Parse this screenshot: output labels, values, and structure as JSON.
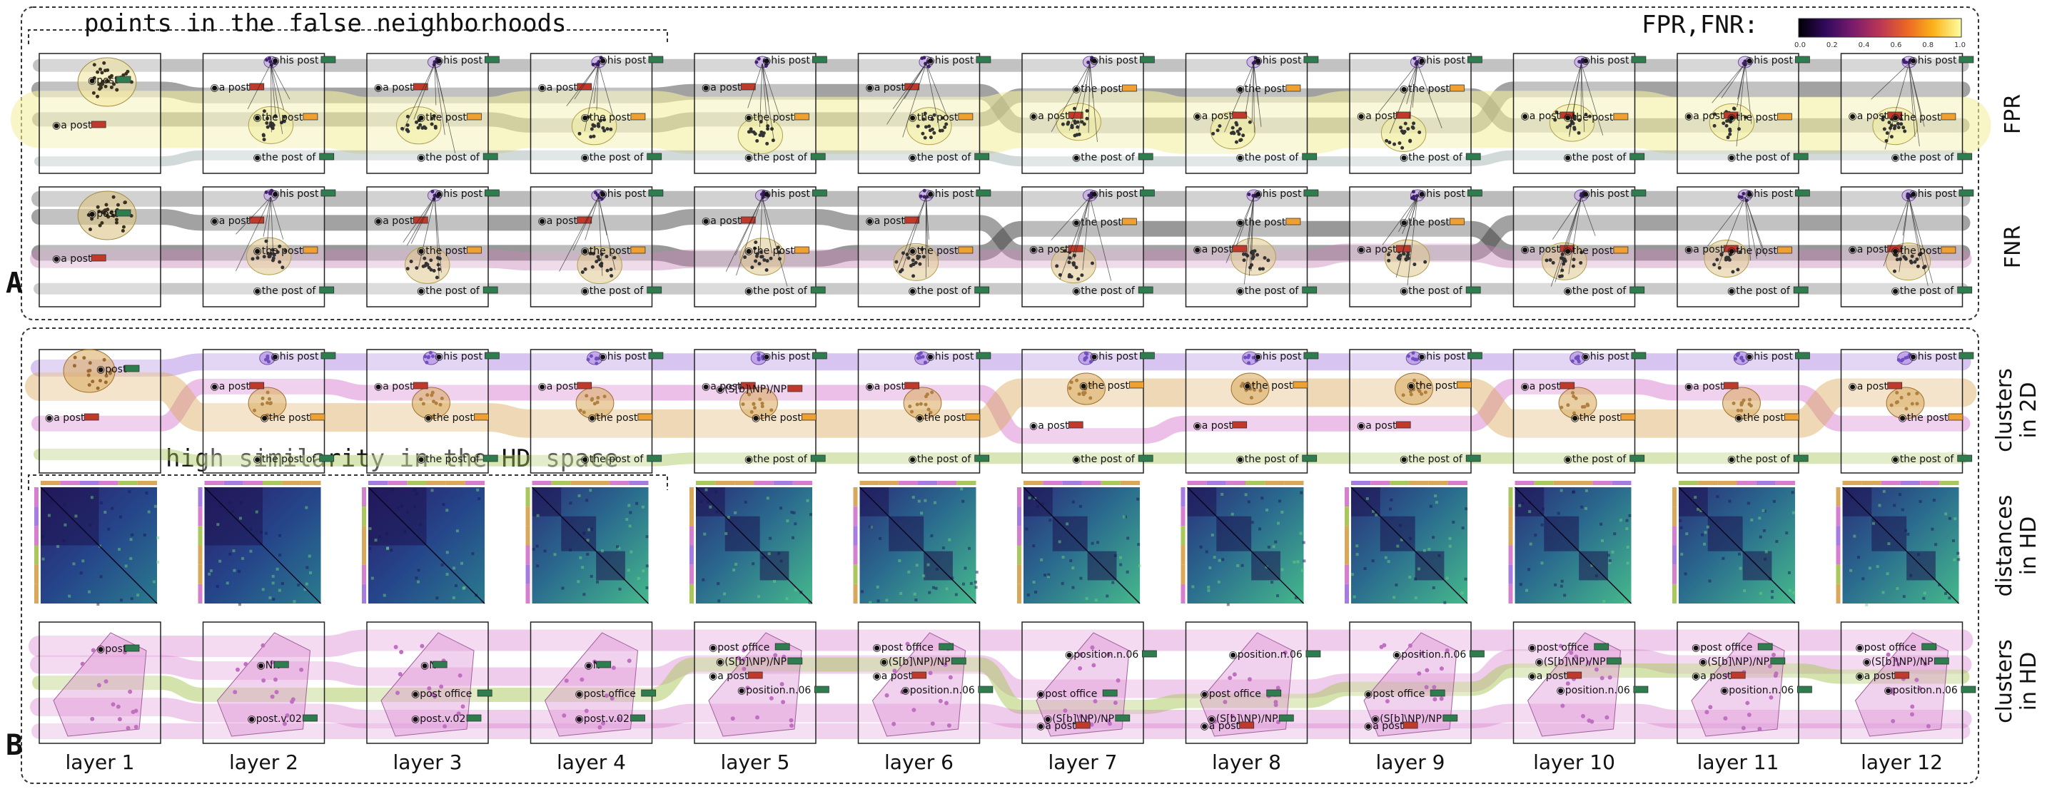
{
  "figure": {
    "panel_a_label": "A",
    "panel_b_label": "B",
    "annotation_false_neighborhoods": "points in the false neighborhoods",
    "annotation_high_similarity": "high similarity in the HD space",
    "colorbar": {
      "label": "FPR,FNR:",
      "ticks": [
        "0.0",
        "0.2",
        "0.4",
        "0.6",
        "0.8",
        "1.0"
      ],
      "colors": [
        "#000004",
        "#320a5e",
        "#781b6c",
        "#bb3654",
        "#ec6824",
        "#fbb41a",
        "#fcffa4"
      ]
    },
    "rows": [
      {
        "id": "fpr",
        "label": "FPR"
      },
      {
        "id": "fnr",
        "label": "FNR"
      },
      {
        "id": "clusters2d",
        "label": "clusters in 2D"
      },
      {
        "id": "distances",
        "label": "distances in HD"
      },
      {
        "id": "clustershd",
        "label": "clusters in HD"
      }
    ],
    "layers": [
      "layer 1",
      "layer 2",
      "layer 3",
      "layer 4",
      "layer 5",
      "layer 6",
      "layer 7",
      "layer 8",
      "layer 9",
      "layer 10",
      "layer 11",
      "layer 12"
    ],
    "colors": {
      "purple": "#a77ce0",
      "pink": "#d77fcf",
      "orange": "#d9a85a",
      "green": "#a9c75a",
      "yellow": "#f3efa0",
      "gray": "#8c8c8c",
      "dark_gray": "#555555",
      "tag_green": "#2e7d4f",
      "tag_orange": "#f0a030",
      "tag_red": "#c0392b"
    },
    "labels": {
      "his_post": "his post",
      "a_post": "a post",
      "the_post": "the post",
      "the_post_of": "the post of",
      "post": "post",
      "sbnp": "(S[b]\\NP)/NP",
      "nn": "NN",
      "n": "N",
      "post_office": "post office",
      "position": "position.n.06",
      "post_v02": "post.v.02"
    }
  }
}
